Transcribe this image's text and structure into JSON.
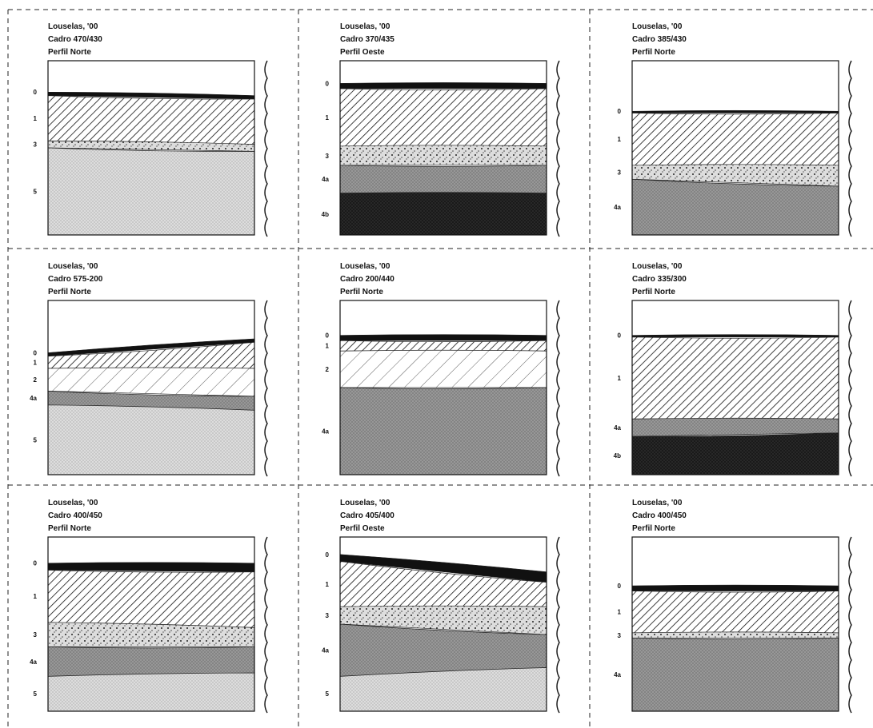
{
  "panels": [
    {
      "title": [
        "Louselas, '00",
        "Cadro 470/430",
        "Perfil Norte"
      ],
      "layers": [
        "0",
        "1",
        "3",
        "5"
      ]
    },
    {
      "title": [
        "Louselas, '00",
        "Cadro 370/435",
        "Perfil Oeste"
      ],
      "layers": [
        "0",
        "1",
        "3",
        "4a",
        "4b"
      ]
    },
    {
      "title": [
        "Louselas, '00",
        "Cadro 385/430",
        "Perfil Norte"
      ],
      "layers": [
        "0",
        "1",
        "3",
        "4a"
      ]
    },
    {
      "title": [
        "Louselas, '00",
        "Cadro 575-200",
        "Perfil Norte"
      ],
      "layers": [
        "0",
        "1",
        "2",
        "4a",
        "5"
      ]
    },
    {
      "title": [
        "Louselas, '00",
        "Cadro 200/440",
        "Perfil Norte"
      ],
      "layers": [
        "0",
        "1",
        "2",
        "4a"
      ]
    },
    {
      "title": [
        "Louselas, '00",
        "Cadro 335/300",
        "Perfil Norte"
      ],
      "layers": [
        "0",
        "1",
        "4a",
        "4b"
      ]
    },
    {
      "title": [
        "Louselas, '00",
        "Cadro 400/450",
        "Perfil Norte"
      ],
      "layers": [
        "0",
        "1",
        "3",
        "4a",
        "5"
      ]
    },
    {
      "title": [
        "Louselas, '00",
        "Cadro 405/400",
        "Perfil Oeste"
      ],
      "layers": [
        "0",
        "1",
        "3",
        "4a",
        "5"
      ]
    },
    {
      "title": [
        "Louselas, '00",
        "Cadro 400/450",
        "Perfil Norte"
      ],
      "layers": [
        "0",
        "1",
        "3",
        "4a"
      ]
    }
  ]
}
